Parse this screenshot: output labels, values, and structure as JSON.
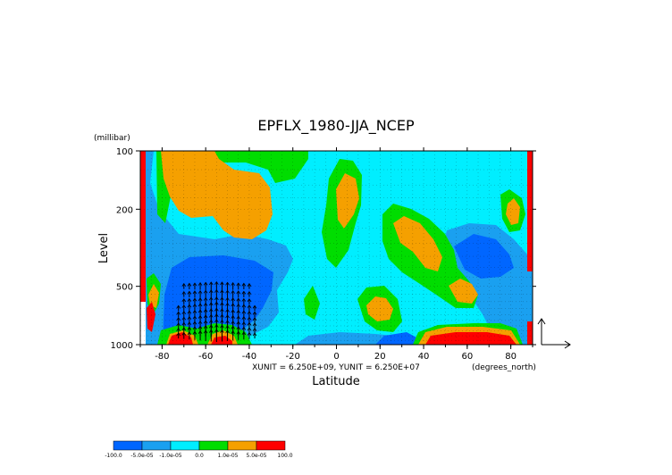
{
  "chart_data": {
    "type": "heatmap",
    "title": "EPFLX_1980-JJA_NCEP",
    "xlabel": "Latitude",
    "ylabel": "Level",
    "x_units": "(degrees_north)",
    "y_units": "(millibar)",
    "xlim": [
      -90,
      90
    ],
    "ylim": [
      1000,
      100
    ],
    "y_scale": "log",
    "x_ticks": [
      -80,
      -60,
      -40,
      -20,
      0,
      20,
      40,
      60,
      80
    ],
    "y_ticks": [
      100,
      200,
      500,
      1000
    ],
    "vector_scale_text": "XUNIT = 6.250E+09, YUNIT = 6.250E+07",
    "colorbar": {
      "labels": [
        "-100.0",
        "-5.0e-05",
        "-1.0e-05",
        "0.0",
        "1.0e-05",
        "5.0e-05",
        "100.0"
      ],
      "colors": [
        "#0066ff",
        "#1aa0f0",
        "#00eeff",
        "#00dd00",
        "#f5a000",
        "#ff0000"
      ]
    },
    "field_colors": {
      "background": "#00eeff",
      "weak_negative": "#1aa0f0",
      "strong_negative": "#0066ff",
      "weak_positive": "#00dd00",
      "moderate_positive": "#f5a000",
      "strong_positive": "#ff0000"
    },
    "vectors": "EP flux arrows, strongest (upward) between -70 and -40 latitude below 500 mb"
  }
}
